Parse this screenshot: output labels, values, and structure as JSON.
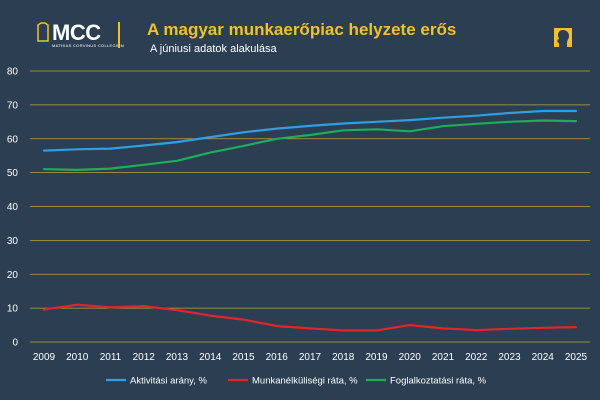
{
  "header": {
    "logo_text": "MCC",
    "logo_subtext": "MATHIAS CORVINUS COLLEGIUM",
    "title": "A magyar munkaerőpiac helyzete erős",
    "subtitle": "A júniusi adatok alakulása"
  },
  "colors": {
    "background": "#2b3e52",
    "accent": "#f2c029",
    "gridline": "#d4b63a"
  },
  "icons": {
    "logo": "mcc-logo-icon",
    "corner": "bust-silhouette-icon"
  },
  "chart_data": {
    "type": "line",
    "title": "",
    "xlabel": "",
    "ylabel": "",
    "ylim": [
      0,
      80
    ],
    "yticks": [
      0,
      10,
      20,
      30,
      40,
      50,
      60,
      70,
      80
    ],
    "grid": true,
    "legend_position": "bottom",
    "categories": [
      "2009",
      "2010",
      "2011",
      "2012",
      "2013",
      "2014",
      "2015",
      "2016",
      "2017",
      "2018",
      "2019",
      "2020",
      "2021",
      "2022",
      "2023",
      "2024",
      "2025"
    ],
    "series": [
      {
        "name": "Aktivitási arány, %",
        "color": "#2e9fe0",
        "values": [
          56.5,
          56.9,
          57.1,
          58.0,
          59.0,
          60.5,
          61.9,
          63.0,
          63.8,
          64.5,
          65.0,
          65.5,
          66.2,
          66.8,
          67.6,
          68.2,
          68.2
        ]
      },
      {
        "name": "Munkanélküliségi ráta, %",
        "color": "#e0262b",
        "values": [
          9.6,
          11.0,
          10.2,
          10.6,
          9.4,
          7.8,
          6.6,
          4.7,
          4.0,
          3.4,
          3.4,
          5.0,
          4.0,
          3.5,
          3.9,
          4.2,
          4.4
        ]
      },
      {
        "name": "Foglalkoztatási ráta, %",
        "color": "#1fad57",
        "values": [
          51.0,
          50.8,
          51.2,
          52.3,
          53.5,
          55.9,
          57.9,
          60.0,
          61.1,
          62.5,
          62.8,
          62.2,
          63.7,
          64.4,
          65.0,
          65.4,
          65.2
        ]
      }
    ]
  }
}
